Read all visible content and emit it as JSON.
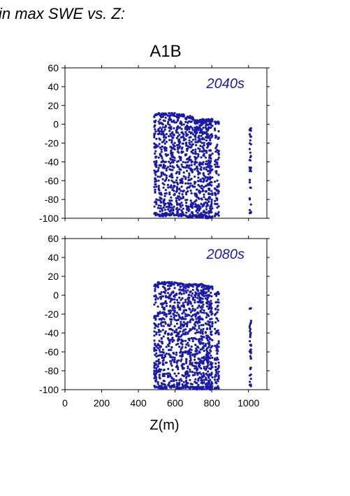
{
  "figure": {
    "heading": "in max SWE vs. Z:",
    "title": "A1B"
  },
  "colors": {
    "points": "#1a1aaa",
    "labels": "#1a1aaa",
    "axes": "#000000"
  },
  "chart_data": [
    {
      "type": "scatter",
      "panel_label": "2040s",
      "xlim": [
        0,
        1100
      ],
      "ylim": [
        -100,
        60
      ],
      "xticks": [
        0,
        200,
        400,
        600,
        800,
        1000
      ],
      "yticks": [
        60,
        40,
        20,
        0,
        -20,
        -40,
        -60,
        -80,
        -100
      ],
      "tick_labels_y": [
        "60",
        "40",
        "20",
        "0",
        "-20",
        "-40",
        "-60",
        "-80",
        "-100"
      ],
      "xlabel": "",
      "ylabel": "",
      "clusters": [
        {
          "x": [
            485,
            500
          ],
          "ymin": -97,
          "ymax": 11,
          "density": "high"
        },
        {
          "x": [
            505,
            555
          ],
          "ymin": -98,
          "ymax": 12,
          "density": "high"
        },
        {
          "x": [
            560,
            600
          ],
          "ymin": -97,
          "ymax": 12,
          "density": "high"
        },
        {
          "x": [
            605,
            650
          ],
          "ymin": -98,
          "ymax": 11,
          "density": "high"
        },
        {
          "x": [
            655,
            700
          ],
          "ymin": -99,
          "ymax": 9,
          "density": "high"
        },
        {
          "x": [
            705,
            760
          ],
          "ymin": -99,
          "ymax": 6,
          "density": "very-high"
        },
        {
          "x": [
            765,
            805
          ],
          "ymin": -100,
          "ymax": 6,
          "density": "very-high"
        },
        {
          "x": [
            815,
            840
          ],
          "ymin": -98,
          "ymax": 3,
          "density": "medium"
        },
        {
          "x": [
            1005,
            1015
          ],
          "ymin": -96,
          "ymax": -4,
          "density": "low"
        }
      ]
    },
    {
      "type": "scatter",
      "panel_label": "2080s",
      "xlim": [
        0,
        1100
      ],
      "ylim": [
        -100,
        60
      ],
      "xticks": [
        0,
        200,
        400,
        600,
        800,
        1000
      ],
      "yticks": [
        60,
        40,
        20,
        0,
        -20,
        -40,
        -60,
        -80,
        -100
      ],
      "tick_labels_x": [
        "0",
        "200",
        "400",
        "600",
        "800",
        "1000"
      ],
      "tick_labels_y": [
        "60",
        "40",
        "20",
        "0",
        "-20",
        "-40",
        "-60",
        "-80",
        "-100"
      ],
      "xlabel": "Z(m)",
      "ylabel": "",
      "clusters": [
        {
          "x": [
            485,
            500
          ],
          "ymin": -98,
          "ymax": 12,
          "density": "high"
        },
        {
          "x": [
            505,
            555
          ],
          "ymin": -99,
          "ymax": 14,
          "density": "high"
        },
        {
          "x": [
            560,
            600
          ],
          "ymin": -98,
          "ymax": 14,
          "density": "high"
        },
        {
          "x": [
            605,
            650
          ],
          "ymin": -99,
          "ymax": 13,
          "density": "high"
        },
        {
          "x": [
            655,
            700
          ],
          "ymin": -99,
          "ymax": 12,
          "density": "high"
        },
        {
          "x": [
            705,
            760
          ],
          "ymin": -100,
          "ymax": 12,
          "density": "very-high"
        },
        {
          "x": [
            765,
            805
          ],
          "ymin": -100,
          "ymax": 10,
          "density": "very-high"
        },
        {
          "x": [
            815,
            840
          ],
          "ymin": -99,
          "ymax": 4,
          "density": "medium"
        },
        {
          "x": [
            1005,
            1015
          ],
          "ymin": -97,
          "ymax": -12,
          "density": "low"
        }
      ]
    }
  ]
}
